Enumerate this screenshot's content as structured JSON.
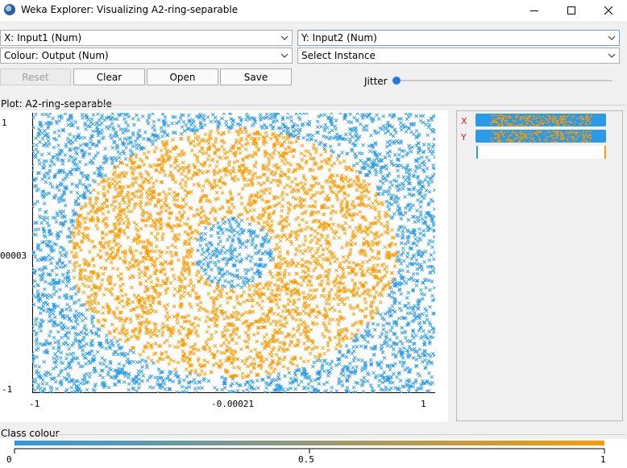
{
  "window": {
    "title": "Weka Explorer: Visualizing A2-ring-separable"
  },
  "controls": {
    "x_axis": "X: Input1 (Num)",
    "y_axis": "Y: Input2 (Num)",
    "colour": "Colour: Output (Num)",
    "instance": "Select Instance",
    "reset_label": "Reset",
    "clear_label": "Clear",
    "open_label": "Open",
    "save_label": "Save",
    "jitter_label": "Jitter",
    "jitter_value": 0
  },
  "plot": {
    "title": "Plot: A2-ring-separable",
    "y_ticks": {
      "top": "1",
      "mid": "00003",
      "bottom": "-1"
    },
    "x_ticks": {
      "left": "-1",
      "mid": "-0.00021",
      "right": "1"
    },
    "side_x_label": "X",
    "side_y_label": "Y"
  },
  "chart_data": {
    "type": "scatter",
    "title": "Plot: A2-ring-separable",
    "x_field": "Input1",
    "y_field": "Input2",
    "colour_field": "Output",
    "xlim": [
      -1,
      1
    ],
    "ylim": [
      -1,
      1
    ],
    "x_tick_labels": [
      "-1",
      "-0.00021",
      "1"
    ],
    "y_tick_labels": [
      "1",
      "00003",
      "-1"
    ],
    "marker": "x",
    "colors": {
      "low": "#2b9ae8",
      "high": "#ff9900"
    },
    "regions": [
      {
        "shape": "outside-ellipse",
        "center": [
          0,
          0
        ],
        "radii": [
          0.81,
          0.89
        ],
        "output": 0
      },
      {
        "shape": "ring",
        "center": [
          0,
          0
        ],
        "outer_radii": [
          0.81,
          0.89
        ],
        "inner_radii": [
          0.2,
          0.25
        ],
        "output": 1
      },
      {
        "shape": "inner-ellipse",
        "center": [
          0,
          0
        ],
        "radii": [
          0.2,
          0.25
        ],
        "output": 0
      }
    ]
  },
  "legend": {
    "title": "Class colour",
    "min_label": "0",
    "mid_label": "0.5",
    "max_label": "1",
    "low_color": "#2b9ae8",
    "high_color": "#ff9900"
  }
}
